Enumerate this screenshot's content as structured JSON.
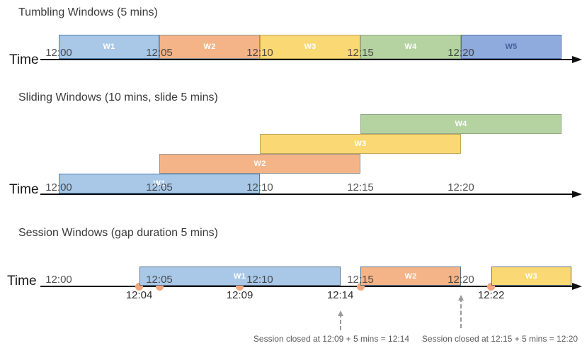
{
  "colors": {
    "blue": {
      "fill": "#A9C8E8",
      "border": "#4E7CAC",
      "text": "#FFFFFF"
    },
    "orange": {
      "fill": "#F4B488",
      "border": "#939393",
      "text": "#FFFFFF"
    },
    "yellow": {
      "fill": "#FAD873",
      "border": "#C2A657",
      "text": "#FFFFFF"
    },
    "green": {
      "fill": "#B4D3A0",
      "border": "#93A788",
      "text": "#FFFFFF"
    },
    "periwinkle": {
      "fill": "#8FAADC",
      "border": "#5470A8",
      "text": "#44619D"
    },
    "session_border": "#5E7186",
    "event_dot": "#F3A77E",
    "timeline": "#0f0f0f"
  },
  "sections": {
    "tumbling": {
      "title": "Tumbling Windows (5 mins)",
      "time_label": "Time",
      "ticks": [
        {
          "label": "12:00",
          "min": 0
        },
        {
          "label": "12:05",
          "min": 5
        },
        {
          "label": "12:10",
          "min": 10
        },
        {
          "label": "12:15",
          "min": 15
        },
        {
          "label": "12:20",
          "min": 20
        }
      ],
      "windows": [
        {
          "label": "W1",
          "color": "blue",
          "start_min": 0,
          "end_min": 5
        },
        {
          "label": "W2",
          "color": "orange",
          "start_min": 5,
          "end_min": 10
        },
        {
          "label": "W3",
          "color": "yellow",
          "start_min": 10,
          "end_min": 15
        },
        {
          "label": "W4",
          "color": "green",
          "start_min": 15,
          "end_min": 20
        },
        {
          "label": "W5",
          "color": "periwinkle",
          "start_min": 20,
          "end_min": 25
        }
      ]
    },
    "sliding": {
      "title": "Sliding Windows (10 mins, slide 5 mins)",
      "time_label": "Time",
      "ticks": [
        {
          "label": "12:00",
          "min": 0
        },
        {
          "label": "12:05",
          "min": 5
        },
        {
          "label": "12:10",
          "min": 10
        },
        {
          "label": "12:15",
          "min": 15
        },
        {
          "label": "12:20",
          "min": 20
        }
      ],
      "windows": [
        {
          "label": "W1",
          "color": "blue",
          "start_min": 0,
          "end_min": 10,
          "row": 0
        },
        {
          "label": "W2",
          "color": "orange",
          "start_min": 5,
          "end_min": 15,
          "row": 1
        },
        {
          "label": "W3",
          "color": "yellow",
          "start_min": 10,
          "end_min": 20,
          "row": 2
        },
        {
          "label": "W4",
          "color": "green",
          "start_min": 15,
          "end_min": 25,
          "row": 3
        }
      ]
    },
    "session": {
      "title": "Session Windows (gap duration 5 mins)",
      "time_label": "Time",
      "ticks": [
        {
          "label": "12:00",
          "min": 0
        },
        {
          "label": "12:05",
          "min": 5
        },
        {
          "label": "12:10",
          "min": 10
        },
        {
          "label": "12:15",
          "min": 15
        },
        {
          "label": "12:20",
          "min": 20
        }
      ],
      "windows": [
        {
          "label": "W1",
          "color": "blue",
          "start_min": 4,
          "end_min": 14
        },
        {
          "label": "W2",
          "color": "orange",
          "start_min": 15,
          "end_min": 20
        },
        {
          "label": "W3",
          "color": "yellow",
          "start_min": 21.5,
          "end_min": 25.5
        }
      ],
      "events": [
        {
          "min": 4
        },
        {
          "min": 5
        },
        {
          "min": 9
        },
        {
          "min": 15
        },
        {
          "min": 21.5
        }
      ],
      "event_labels": [
        {
          "label": "12:04",
          "min": 4
        },
        {
          "label": "12:09",
          "min": 9
        },
        {
          "label": "12:14",
          "min": 14
        },
        {
          "label": "12:22",
          "min": 21.5
        }
      ],
      "annotations": [
        {
          "text": "Session closed at 12:09 + 5 mins = 12:14",
          "arrow_min": 14
        },
        {
          "text": "Session closed at 12:15 + 5 mins = 12:20",
          "arrow_min": 20
        }
      ]
    }
  }
}
